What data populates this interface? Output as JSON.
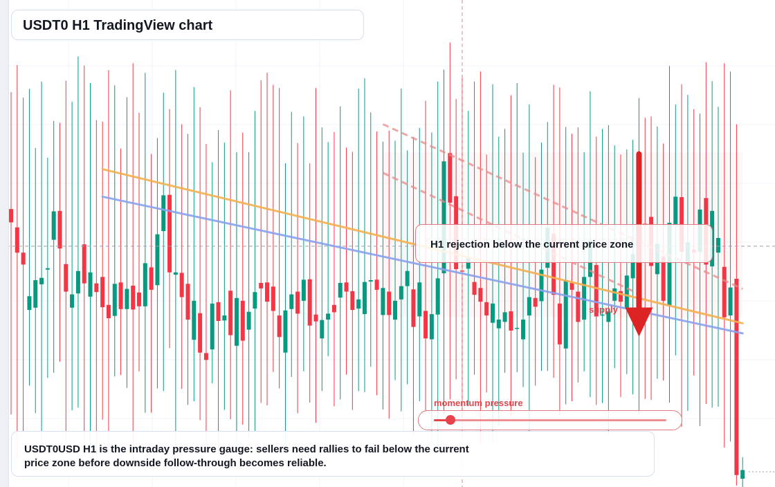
{
  "header": {
    "title": "USDT0 H1 TradingView chart"
  },
  "callout": {
    "text": "H1 rejection below the current price zone"
  },
  "zone_label": "supply",
  "gauge": {
    "label": "momentum pressure",
    "level": 0.07
  },
  "summary": {
    "text": "USDT0USD H1 is the intraday pressure gauge: sellers need rallies to fail below the current price zone before downside follow-through becomes reliable."
  },
  "colors": {
    "up": "#089981",
    "down": "#f23645",
    "orange_line": "#f5b04f",
    "blue_line": "#8aa2ee",
    "arrow": "#dd2424"
  },
  "chart_data": {
    "type": "candlestick",
    "title": "",
    "ylim": [
      0,
      100
    ],
    "legend": "none",
    "grid": true,
    "series": [
      {
        "x": 1,
        "o": 60.6,
        "h": 86.1,
        "l": 15.8,
        "c": 57.7
      },
      {
        "x": 2,
        "o": 56.6,
        "h": 92.0,
        "l": 6.4,
        "c": 51.1
      },
      {
        "x": 3,
        "o": 51.1,
        "h": 84.9,
        "l": 11.9,
        "c": 48.5
      },
      {
        "x": 4,
        "o": 38.6,
        "h": 86.8,
        "l": 22.1,
        "c": 41.6
      },
      {
        "x": 5,
        "o": 39.1,
        "h": 73.9,
        "l": 16.1,
        "c": 45.1
      },
      {
        "x": 6,
        "o": 44.2,
        "h": 88.4,
        "l": 7.4,
        "c": 45.6
      },
      {
        "x": 7,
        "o": 47.4,
        "h": 71.8,
        "l": 23.8,
        "c": 47.7
      },
      {
        "x": 8,
        "o": 53.9,
        "h": 79.8,
        "l": 24.9,
        "c": 60.1
      },
      {
        "x": 9,
        "o": 60.2,
        "h": 79.4,
        "l": 27.3,
        "c": 52.0
      },
      {
        "x": 10,
        "o": 48.6,
        "h": 88.6,
        "l": 7.3,
        "c": 42.6
      },
      {
        "x": 11,
        "o": 39.1,
        "h": 84.0,
        "l": 16.7,
        "c": 42.0
      },
      {
        "x": 12,
        "o": 42.2,
        "h": 93.9,
        "l": 17.3,
        "c": 47.1
      },
      {
        "x": 13,
        "o": 52.9,
        "h": 91.9,
        "l": 6.6,
        "c": 44.4
      },
      {
        "x": 14,
        "o": 41.5,
        "h": 88.1,
        "l": 8.7,
        "c": 46.8
      },
      {
        "x": 15,
        "o": 44.4,
        "h": 80.0,
        "l": 4.9,
        "c": 42.5
      },
      {
        "x": 16,
        "o": 45.8,
        "h": 79.7,
        "l": 14.7,
        "c": 39.2
      },
      {
        "x": 17,
        "o": 39.7,
        "h": 90.9,
        "l": 7.8,
        "c": 36.8
      },
      {
        "x": 18,
        "o": 37.3,
        "h": 87.6,
        "l": 24.1,
        "c": 44.3
      },
      {
        "x": 19,
        "o": 44.6,
        "h": 73.8,
        "l": 24.4,
        "c": 38.8
      },
      {
        "x": 20,
        "o": 38.8,
        "h": 85.0,
        "l": 21.6,
        "c": 43.2
      },
      {
        "x": 21,
        "o": 43.9,
        "h": 92.4,
        "l": 5.1,
        "c": 38.7
      },
      {
        "x": 22,
        "o": 42.4,
        "h": 81.6,
        "l": 25.2,
        "c": 39.4
      },
      {
        "x": 23,
        "o": 39.4,
        "h": 90.3,
        "l": 16.2,
        "c": 48.8
      },
      {
        "x": 24,
        "o": 47.9,
        "h": 72.6,
        "l": 16.2,
        "c": 43.0
      },
      {
        "x": 25,
        "o": 44.0,
        "h": 76.1,
        "l": 21.5,
        "c": 55.1
      },
      {
        "x": 26,
        "o": 55.8,
        "h": 86.0,
        "l": 20.9,
        "c": 63.6
      },
      {
        "x": 27,
        "o": 63.7,
        "h": 82.4,
        "l": 30.3,
        "c": 46.8
      },
      {
        "x": 28,
        "o": 46.3,
        "h": 90.9,
        "l": 8.0,
        "c": 46.8
      },
      {
        "x": 29,
        "o": 46.7,
        "h": 79.1,
        "l": 21.4,
        "c": 41.4
      },
      {
        "x": 30,
        "o": 44.3,
        "h": 77.0,
        "l": 17.9,
        "c": 36.5
      },
      {
        "x": 31,
        "o": 32.1,
        "h": 87.2,
        "l": 18.7,
        "c": 40.6
      },
      {
        "x": 32,
        "o": 37.9,
        "h": 82.8,
        "l": 14.6,
        "c": 29.3
      },
      {
        "x": 33,
        "o": 29.2,
        "h": 74.8,
        "l": 8.9,
        "c": 27.7
      },
      {
        "x": 34,
        "o": 30.0,
        "h": 70.8,
        "l": 22.6,
        "c": 40.0
      },
      {
        "x": 35,
        "o": 40.3,
        "h": 77.8,
        "l": 7.4,
        "c": 36.2
      },
      {
        "x": 36,
        "o": 36.3,
        "h": 75.1,
        "l": 16.8,
        "c": 37.4
      },
      {
        "x": 37,
        "o": 42.8,
        "h": 86.5,
        "l": 14.8,
        "c": 33.1
      },
      {
        "x": 38,
        "o": 30.8,
        "h": 73.0,
        "l": 6.6,
        "c": 41.2
      },
      {
        "x": 39,
        "o": 40.6,
        "h": 77.3,
        "l": 13.6,
        "c": 31.9
      },
      {
        "x": 40,
        "o": 34.3,
        "h": 73.0,
        "l": 10.6,
        "c": 38.2
      },
      {
        "x": 41,
        "o": 38.9,
        "h": 82.0,
        "l": 11.8,
        "c": 42.5
      },
      {
        "x": 42,
        "o": 44.5,
        "h": 88.7,
        "l": 18.3,
        "c": 43.3
      },
      {
        "x": 43,
        "o": 44.6,
        "h": 90.3,
        "l": 17.8,
        "c": 40.4
      },
      {
        "x": 44,
        "o": 43.7,
        "h": 87.7,
        "l": 25.1,
        "c": 38.4
      },
      {
        "x": 45,
        "o": 37.4,
        "h": 87.0,
        "l": 21.5,
        "c": 32.7
      },
      {
        "x": 46,
        "o": 29.3,
        "h": 70.6,
        "l": 8.6,
        "c": 38.5
      },
      {
        "x": 47,
        "o": 38.8,
        "h": 81.8,
        "l": 24.0,
        "c": 42.0
      },
      {
        "x": 48,
        "o": 42.6,
        "h": 75.0,
        "l": 16.1,
        "c": 37.8
      },
      {
        "x": 49,
        "o": 40.6,
        "h": 80.8,
        "l": 25.2,
        "c": 45.2
      },
      {
        "x": 50,
        "o": 45.3,
        "h": 70.6,
        "l": 18.4,
        "c": 35.2
      },
      {
        "x": 51,
        "o": 37.6,
        "h": 87.0,
        "l": 14.0,
        "c": 36.1
      },
      {
        "x": 52,
        "o": 32.4,
        "h": 78.4,
        "l": 20.9,
        "c": 36.4
      },
      {
        "x": 53,
        "o": 36.5,
        "h": 75.2,
        "l": 28.5,
        "c": 37.8
      },
      {
        "x": 54,
        "o": 39.7,
        "h": 77.4,
        "l": 17.6,
        "c": 38.1
      },
      {
        "x": 55,
        "o": 41.3,
        "h": 83.0,
        "l": 19.1,
        "c": 44.5
      },
      {
        "x": 56,
        "o": 44.6,
        "h": 74.0,
        "l": 24.5,
        "c": 42.6
      },
      {
        "x": 57,
        "o": 42.7,
        "h": 73.1,
        "l": 16.8,
        "c": 38.6
      },
      {
        "x": 58,
        "o": 38.9,
        "h": 86.9,
        "l": 20.9,
        "c": 40.9
      },
      {
        "x": 59,
        "o": 37.7,
        "h": 89.1,
        "l": 20.7,
        "c": 44.7
      },
      {
        "x": 60,
        "o": 44.8,
        "h": 81.7,
        "l": 26.2,
        "c": 45.1
      },
      {
        "x": 61,
        "o": 45.2,
        "h": 77.5,
        "l": 20.0,
        "c": 43.0
      },
      {
        "x": 62,
        "o": 37.5,
        "h": 75.3,
        "l": 16.9,
        "c": 43.4
      },
      {
        "x": 63,
        "o": 42.6,
        "h": 77.7,
        "l": 14.9,
        "c": 37.5
      },
      {
        "x": 64,
        "o": 36.5,
        "h": 75.5,
        "l": 23.3,
        "c": 40.6
      },
      {
        "x": 65,
        "o": 40.9,
        "h": 86.9,
        "l": 16.5,
        "c": 43.8
      },
      {
        "x": 66,
        "o": 43.8,
        "h": 73.4,
        "l": 22.4,
        "c": 47.1
      },
      {
        "x": 67,
        "o": 43.1,
        "h": 76.3,
        "l": 11.4,
        "c": 34.9
      },
      {
        "x": 68,
        "o": 37.2,
        "h": 78.3,
        "l": 18.7,
        "c": 44.6
      },
      {
        "x": 69,
        "o": 38.4,
        "h": 84.2,
        "l": 16.4,
        "c": 32.4
      },
      {
        "x": 70,
        "o": 32.2,
        "h": 77.3,
        "l": 10.0,
        "c": 37.7
      },
      {
        "x": 71,
        "o": 37.6,
        "h": 88.4,
        "l": 7.5,
        "c": 45.5
      },
      {
        "x": 72,
        "o": 46.6,
        "h": 91.0,
        "l": 16.0,
        "c": 71.0
      },
      {
        "x": 73,
        "o": 72.8,
        "h": 96.9,
        "l": 19.1,
        "c": 62.0
      },
      {
        "x": 74,
        "o": 63.4,
        "h": 84.6,
        "l": 23.5,
        "c": 47.5
      },
      {
        "x": 75,
        "o": 47.2,
        "h": 89.9,
        "l": 11.0,
        "c": 47.0
      },
      {
        "x": 76,
        "o": 47.6,
        "h": 82.0,
        "l": 17.7,
        "c": 49.9
      },
      {
        "x": 77,
        "o": 44.7,
        "h": 88.4,
        "l": 24.5,
        "c": 41.9
      },
      {
        "x": 78,
        "o": 43.4,
        "h": 90.6,
        "l": 9.3,
        "c": 40.4
      },
      {
        "x": 79,
        "o": 40.3,
        "h": 72.5,
        "l": 20.6,
        "c": 37.4
      },
      {
        "x": 80,
        "o": 35.8,
        "h": 87.8,
        "l": 9.6,
        "c": 40.0
      },
      {
        "x": 81,
        "o": 34.6,
        "h": 76.4,
        "l": 13.4,
        "c": 36.5
      },
      {
        "x": 82,
        "o": 36.0,
        "h": 78.1,
        "l": 24.9,
        "c": 38.1
      },
      {
        "x": 83,
        "o": 38.3,
        "h": 85.4,
        "l": 15.5,
        "c": 34.1
      },
      {
        "x": 84,
        "o": 34.5,
        "h": 88.1,
        "l": 25.0,
        "c": 34.7
      },
      {
        "x": 85,
        "o": 32.2,
        "h": 72.9,
        "l": 21.8,
        "c": 36.5
      },
      {
        "x": 86,
        "o": 37.4,
        "h": 83.4,
        "l": 12.1,
        "c": 41.4
      },
      {
        "x": 87,
        "o": 41.2,
        "h": 71.9,
        "l": 22.1,
        "c": 39.3
      },
      {
        "x": 88,
        "o": 40.5,
        "h": 75.1,
        "l": 25.3,
        "c": 47.4
      },
      {
        "x": 89,
        "o": 47.8,
        "h": 79.6,
        "l": 25.3,
        "c": 56.6
      },
      {
        "x": 90,
        "o": 55.2,
        "h": 87.7,
        "l": 23.8,
        "c": 41.9
      },
      {
        "x": 91,
        "o": 40.0,
        "h": 87.1,
        "l": 15.7,
        "c": 31.1
      },
      {
        "x": 92,
        "o": 30.2,
        "h": 78.5,
        "l": 18.0,
        "c": 45.1
      },
      {
        "x": 93,
        "o": 44.5,
        "h": 77.0,
        "l": 18.7,
        "c": 43.0
      },
      {
        "x": 94,
        "o": 42.6,
        "h": 78.4,
        "l": 22.8,
        "c": 36.0
      },
      {
        "x": 95,
        "o": 36.5,
        "h": 73.0,
        "l": 25.2,
        "c": 45.8
      },
      {
        "x": 96,
        "o": 45.8,
        "h": 86.3,
        "l": 19.6,
        "c": 53.7
      },
      {
        "x": 97,
        "o": 48.4,
        "h": 76.4,
        "l": 17.9,
        "c": 37.2
      },
      {
        "x": 98,
        "o": 37.6,
        "h": 78.1,
        "l": 18.3,
        "c": 37.6
      },
      {
        "x": 99,
        "o": 36.0,
        "h": 78.9,
        "l": 11.4,
        "c": 38.3
      },
      {
        "x": 100,
        "o": 40.6,
        "h": 74.5,
        "l": 25.9,
        "c": 43.3
      },
      {
        "x": 101,
        "o": 42.7,
        "h": 72.5,
        "l": 19.6,
        "c": 40.4
      },
      {
        "x": 102,
        "o": 39.0,
        "h": 73.6,
        "l": 24.6,
        "c": 46.1
      },
      {
        "x": 103,
        "o": 45.5,
        "h": 75.7,
        "l": 20.2,
        "c": 50.8
      },
      {
        "x": 104,
        "o": 51.9,
        "h": 84.8,
        "l": 15.9,
        "c": 60.0
      },
      {
        "x": 105,
        "o": 57.4,
        "h": 80.5,
        "l": 19.2,
        "c": 57.1
      },
      {
        "x": 106,
        "o": 58.9,
        "h": 80.8,
        "l": 19.0,
        "c": 48.2
      },
      {
        "x": 107,
        "o": 46.4,
        "h": 78.6,
        "l": 23.6,
        "c": 53.0
      },
      {
        "x": 108,
        "o": 50.3,
        "h": 74.9,
        "l": 23.2,
        "c": 40.6
      },
      {
        "x": 109,
        "o": 39.6,
        "h": 91.8,
        "l": 18.4,
        "c": 57.6
      },
      {
        "x": 110,
        "o": 57.1,
        "h": 83.4,
        "l": 28.7,
        "c": 63.3
      },
      {
        "x": 111,
        "o": 63.2,
        "h": 87.8,
        "l": 13.1,
        "c": 51.3
      },
      {
        "x": 112,
        "o": 49.1,
        "h": 85.5,
        "l": 16.6,
        "c": 53.3
      },
      {
        "x": 113,
        "o": 51.8,
        "h": 82.4,
        "l": 24.3,
        "c": 51.1
      },
      {
        "x": 114,
        "o": 51.3,
        "h": 81.4,
        "l": 13.3,
        "c": 60.5
      },
      {
        "x": 115,
        "o": 63.0,
        "h": 92.6,
        "l": 18.1,
        "c": 48.5
      },
      {
        "x": 116,
        "o": 48.1,
        "h": 88.5,
        "l": 17.3,
        "c": 60.2
      },
      {
        "x": 117,
        "o": 51.1,
        "h": 82.9,
        "l": 17.5,
        "c": 54.3
      },
      {
        "x": 118,
        "o": 48.0,
        "h": 92.4,
        "l": 8.6,
        "c": 37.0
      },
      {
        "x": 119,
        "o": 37.4,
        "h": 90.6,
        "l": 9.9,
        "c": 43.5
      },
      {
        "x": 120,
        "o": 45.4,
        "h": 79.1,
        "l": 0.3,
        "c": 2.6
      },
      {
        "x": 121,
        "o": 1.8,
        "h": 6.5,
        "l": 0.0,
        "c": 3.7
      }
    ],
    "annotations": [
      {
        "kind": "trendline",
        "color": "orange",
        "from": {
          "x": 16,
          "y": 69.3
        },
        "to": {
          "x": 121,
          "y": 35.7
        }
      },
      {
        "kind": "trendline",
        "color": "blue",
        "from": {
          "x": 16,
          "y": 63.3
        },
        "to": {
          "x": 121,
          "y": 33.5
        }
      },
      {
        "kind": "dashed-line",
        "from": {
          "x": 62,
          "y": 79.1
        },
        "to": {
          "x": 121,
          "y": 43.2
        }
      },
      {
        "kind": "dashed-line",
        "from": {
          "x": 62,
          "y": 68.5
        },
        "to": {
          "x": 104,
          "y": 42.1
        }
      },
      {
        "kind": "arrow",
        "x": 104,
        "from_y": 72.6,
        "to_y": 32.8
      },
      {
        "kind": "zone",
        "label": "supply",
        "x_from": 62,
        "x_to": 121,
        "y_from": 37,
        "y_to": 73
      }
    ],
    "crosshair": {
      "x": 75,
      "y": 52.5
    }
  }
}
